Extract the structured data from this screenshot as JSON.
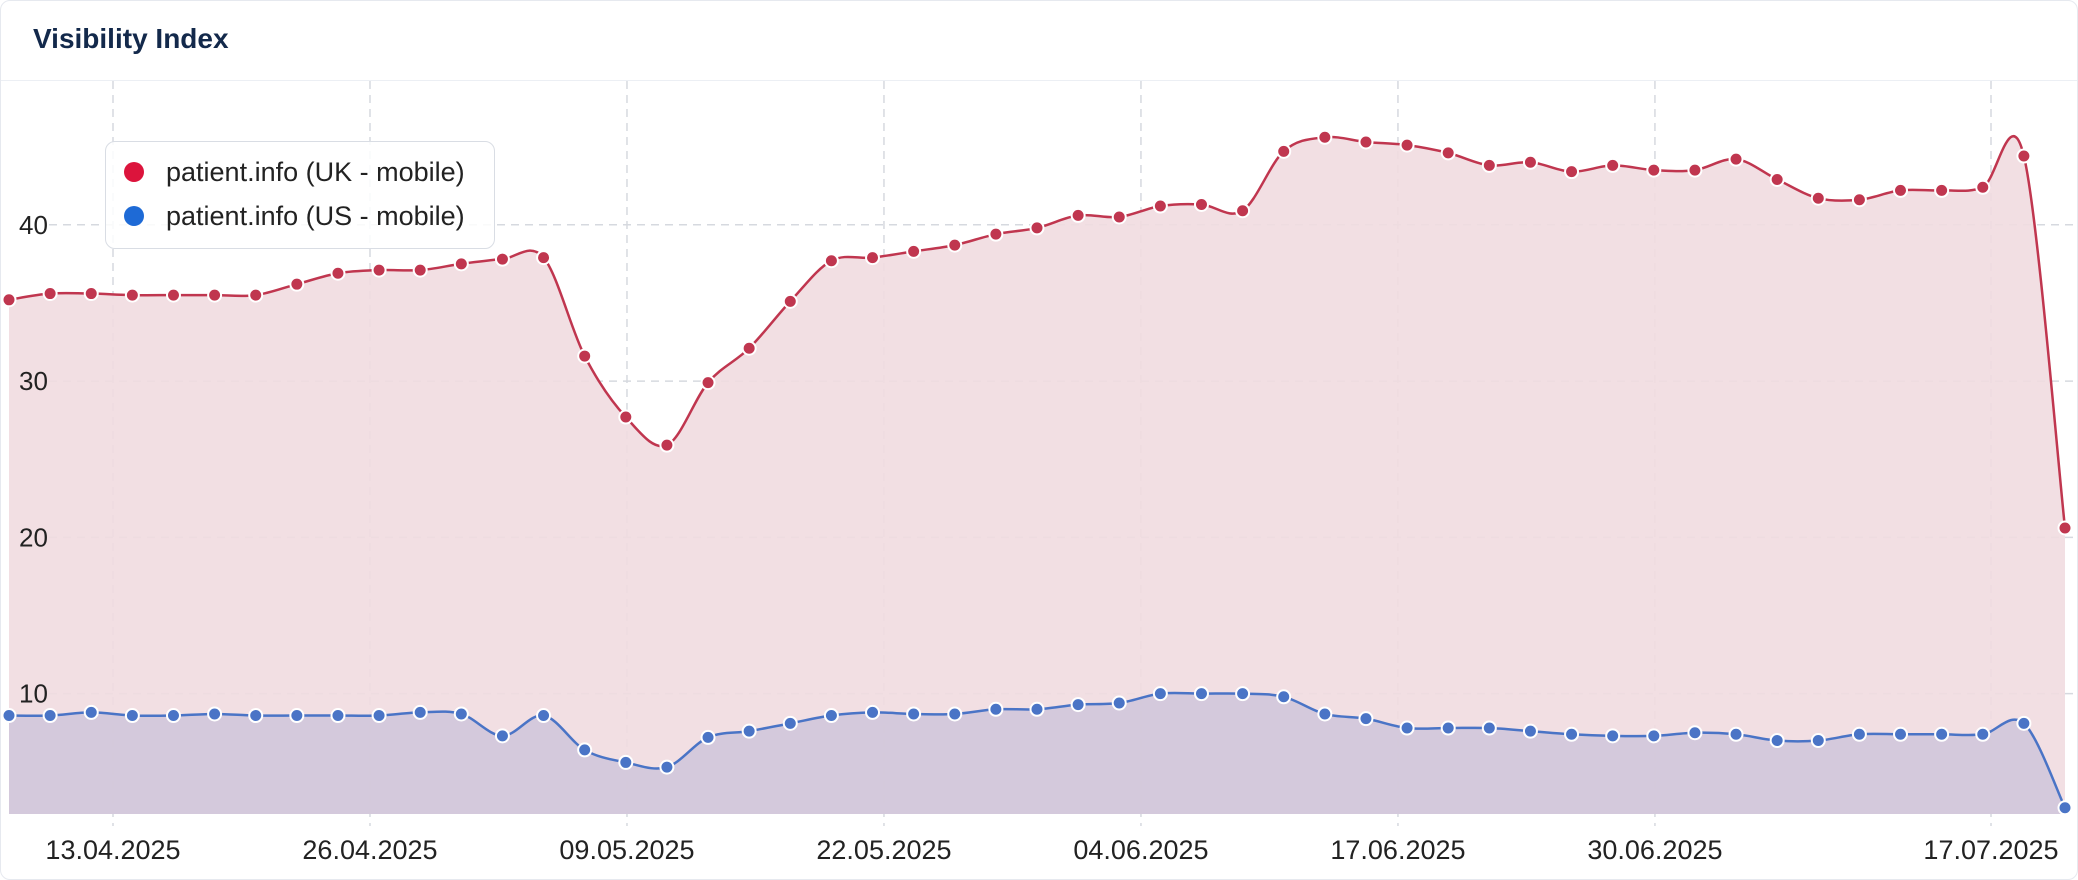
{
  "widget": {
    "title": "Visibility Index"
  },
  "chart_data": {
    "type": "area",
    "title": "Visibility Index",
    "xlabel": "",
    "ylabel": "",
    "ylim": [
      2.3,
      49.2
    ],
    "yticks": [
      10,
      20,
      30,
      40
    ],
    "xticks": [
      "13.04.2025",
      "26.04.2025",
      "09.05.2025",
      "22.05.2025",
      "04.06.2025",
      "17.06.2025",
      "30.06.2025",
      "17.07.2025"
    ],
    "grid": true,
    "legend_position": "top-left",
    "series": [
      {
        "name": "patient.info (UK - mobile)",
        "color": "#c0364f",
        "marker_color": "#dc143c",
        "fill": "#f1dce0",
        "points": [
          [
            "2025-04-02",
            35.2
          ],
          [
            "2025-04-04",
            35.6
          ],
          [
            "2025-04-06",
            35.6
          ],
          [
            "2025-04-08",
            35.5
          ],
          [
            "2025-04-10",
            35.5
          ],
          [
            "2025-04-12",
            35.5
          ],
          [
            "2025-04-14",
            35.5
          ],
          [
            "2025-04-16",
            36.2
          ],
          [
            "2025-04-18",
            36.9
          ],
          [
            "2025-04-20",
            37.1
          ],
          [
            "2025-04-22",
            37.1
          ],
          [
            "2025-04-24",
            37.5
          ],
          [
            "2025-04-26",
            37.8
          ],
          [
            "2025-04-28",
            37.9
          ],
          [
            "2025-04-30",
            31.6
          ],
          [
            "2025-05-02",
            27.7
          ],
          [
            "2025-05-04",
            25.9
          ],
          [
            "2025-05-06",
            29.9
          ],
          [
            "2025-05-08",
            32.1
          ],
          [
            "2025-05-10",
            35.1
          ],
          [
            "2025-05-12",
            37.7
          ],
          [
            "2025-05-14",
            37.9
          ],
          [
            "2025-05-16",
            38.3
          ],
          [
            "2025-05-18",
            38.7
          ],
          [
            "2025-05-20",
            39.4
          ],
          [
            "2025-05-22",
            39.8
          ],
          [
            "2025-05-24",
            40.6
          ],
          [
            "2025-05-26",
            40.5
          ],
          [
            "2025-05-28",
            41.2
          ],
          [
            "2025-05-30",
            41.3
          ],
          [
            "2025-06-01",
            40.9
          ],
          [
            "2025-06-03",
            44.7
          ],
          [
            "2025-06-05",
            45.6
          ],
          [
            "2025-06-07",
            45.3
          ],
          [
            "2025-06-09",
            45.1
          ],
          [
            "2025-06-11",
            44.6
          ],
          [
            "2025-06-13",
            43.8
          ],
          [
            "2025-06-15",
            44.0
          ],
          [
            "2025-06-17",
            43.4
          ],
          [
            "2025-06-19",
            43.8
          ],
          [
            "2025-06-21",
            43.5
          ],
          [
            "2025-06-23",
            43.5
          ],
          [
            "2025-06-25",
            44.2
          ],
          [
            "2025-06-27",
            42.9
          ],
          [
            "2025-06-29",
            41.7
          ],
          [
            "2025-07-01",
            41.6
          ],
          [
            "2025-07-03",
            42.2
          ],
          [
            "2025-07-05",
            42.2
          ],
          [
            "2025-07-07",
            42.4
          ],
          [
            "2025-07-09",
            44.4
          ],
          [
            "2025-07-11",
            20.6
          ]
        ]
      },
      {
        "name": "patient.info (US - mobile)",
        "color": "#4a74c6",
        "marker_color": "#1e6ad6",
        "fill": "#d0c6da",
        "points": [
          [
            "2025-04-02",
            8.6
          ],
          [
            "2025-04-04",
            8.6
          ],
          [
            "2025-04-06",
            8.8
          ],
          [
            "2025-04-08",
            8.6
          ],
          [
            "2025-04-10",
            8.6
          ],
          [
            "2025-04-12",
            8.7
          ],
          [
            "2025-04-14",
            8.6
          ],
          [
            "2025-04-16",
            8.6
          ],
          [
            "2025-04-18",
            8.6
          ],
          [
            "2025-04-20",
            8.6
          ],
          [
            "2025-04-22",
            8.8
          ],
          [
            "2025-04-24",
            8.7
          ],
          [
            "2025-04-26",
            7.3
          ],
          [
            "2025-04-28",
            8.6
          ],
          [
            "2025-04-30",
            6.4
          ],
          [
            "2025-05-02",
            5.6
          ],
          [
            "2025-05-04",
            5.3
          ],
          [
            "2025-05-06",
            7.2
          ],
          [
            "2025-05-08",
            7.6
          ],
          [
            "2025-05-10",
            8.1
          ],
          [
            "2025-05-12",
            8.6
          ],
          [
            "2025-05-14",
            8.8
          ],
          [
            "2025-05-16",
            8.7
          ],
          [
            "2025-05-18",
            8.7
          ],
          [
            "2025-05-20",
            9.0
          ],
          [
            "2025-05-22",
            9.0
          ],
          [
            "2025-05-24",
            9.3
          ],
          [
            "2025-05-26",
            9.4
          ],
          [
            "2025-05-28",
            10.0
          ],
          [
            "2025-05-30",
            10.0
          ],
          [
            "2025-06-01",
            10.0
          ],
          [
            "2025-06-03",
            9.8
          ],
          [
            "2025-06-05",
            8.7
          ],
          [
            "2025-06-07",
            8.4
          ],
          [
            "2025-06-09",
            7.8
          ],
          [
            "2025-06-11",
            7.8
          ],
          [
            "2025-06-13",
            7.8
          ],
          [
            "2025-06-15",
            7.6
          ],
          [
            "2025-06-17",
            7.4
          ],
          [
            "2025-06-19",
            7.3
          ],
          [
            "2025-06-21",
            7.3
          ],
          [
            "2025-06-23",
            7.5
          ],
          [
            "2025-06-25",
            7.4
          ],
          [
            "2025-06-27",
            7.0
          ],
          [
            "2025-06-29",
            7.0
          ],
          [
            "2025-07-01",
            7.4
          ],
          [
            "2025-07-03",
            7.4
          ],
          [
            "2025-07-05",
            7.4
          ],
          [
            "2025-07-07",
            7.4
          ],
          [
            "2025-07-09",
            8.1
          ],
          [
            "2025-07-11",
            2.7
          ]
        ]
      }
    ]
  }
}
